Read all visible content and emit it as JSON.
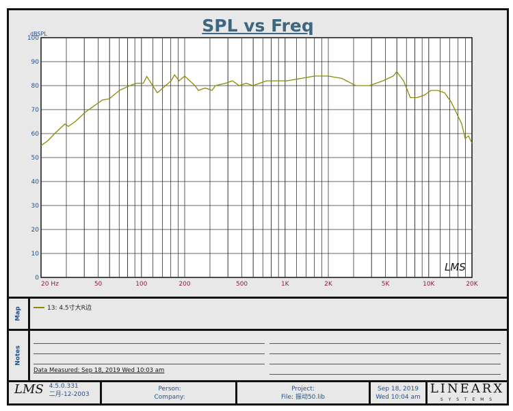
{
  "chart_data": {
    "type": "line",
    "title": "SPL vs Freq",
    "ylabel": "dBSPL",
    "xlabel": "",
    "xscale": "log",
    "xlim": [
      20,
      20000
    ],
    "ylim": [
      0,
      100
    ],
    "yticks": [
      0,
      10,
      20,
      30,
      40,
      50,
      60,
      70,
      80,
      90,
      100
    ],
    "xticks": [
      {
        "v": 20,
        "l": "20  Hz"
      },
      {
        "v": 50,
        "l": "50"
      },
      {
        "v": 100,
        "l": "100"
      },
      {
        "v": 200,
        "l": "200"
      },
      {
        "v": 500,
        "l": "500"
      },
      {
        "v": 1000,
        "l": "1K"
      },
      {
        "v": 2000,
        "l": "2K"
      },
      {
        "v": 5000,
        "l": "5K"
      },
      {
        "v": 10000,
        "l": "10K"
      },
      {
        "v": 20000,
        "l": "20K"
      }
    ],
    "grid": true,
    "series": [
      {
        "name": "13: 4.5寸大R边",
        "color": "#8a8a00",
        "x": [
          20,
          22.3,
          24.9,
          29.3,
          31,
          34.6,
          40.8,
          48,
          53.5,
          59.7,
          70.3,
          82.9,
          92.4,
          103,
          109,
          129,
          161,
          170,
          183,
          200,
          236,
          249,
          278,
          310,
          327,
          386,
          430,
          480,
          536,
          597,
          666,
          743,
          924,
          1031,
          1290,
          1606,
          2000,
          2490,
          3100,
          3860,
          4800,
          5660,
          5990,
          6680,
          7450,
          8320,
          9290,
          10360,
          11560,
          12900,
          14390,
          16060,
          16980,
          17920,
          18930,
          20000
        ],
        "y": [
          55,
          57,
          60,
          64,
          63,
          65,
          69,
          72,
          74,
          74.5,
          78,
          80,
          81,
          81,
          83.8,
          77,
          82,
          84.5,
          82,
          84,
          80,
          78,
          79,
          78,
          80,
          81,
          82,
          80,
          81,
          80,
          81,
          82,
          82,
          82,
          83,
          84,
          84,
          83,
          80,
          80,
          82,
          84,
          85.8,
          82,
          75,
          75,
          76,
          78,
          78,
          77,
          73,
          67,
          64,
          58,
          59,
          56
        ]
      }
    ],
    "watermark": "LMS"
  },
  "map": {
    "label": "Map",
    "legend": "13: 4.5寸大R边"
  },
  "notes": {
    "label": "Notes",
    "measured": "Data Measured: Sep 18, 2019  Wed 10:03 am"
  },
  "footer": {
    "logo": "LMS",
    "version": "4.5.0.331",
    "build_date": "二月-12-2003",
    "person": "Person:",
    "company": "Company:",
    "project": "Project:",
    "file": "File: 振动50.lib",
    "date": "Sep 18, 2019",
    "time": "Wed 10:04 am",
    "brand": "LINEARX",
    "brand_sub": "S Y S T E M S"
  }
}
